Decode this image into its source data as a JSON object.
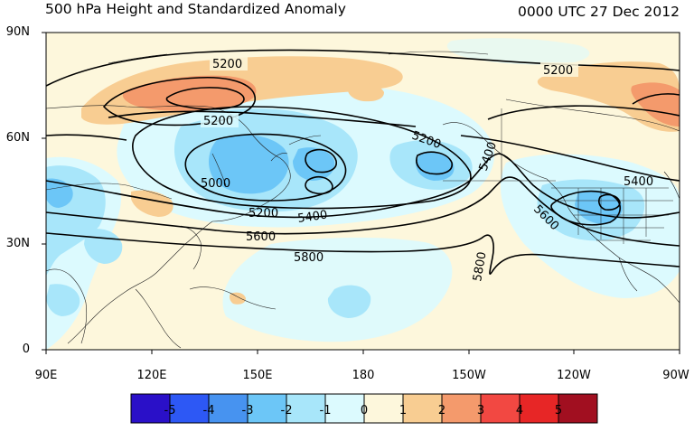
{
  "title": {
    "left": "500 hPa Height and Standardized Anomaly",
    "right": "0000 UTC 27 Dec 2012"
  },
  "map": {
    "lat_labels": [
      "90N",
      "60N",
      "30N",
      "0"
    ],
    "lon_labels": [
      "90E",
      "120E",
      "150E",
      "180",
      "150W",
      "120W",
      "90W"
    ],
    "contour_labels": [
      "5200",
      "5200",
      "5200",
      "5200",
      "5200",
      "5000",
      "5200",
      "5400",
      "5400",
      "5400",
      "5600",
      "5600",
      "5800",
      "5800"
    ]
  },
  "colorbar": {
    "labels": [
      "-5",
      "-4",
      "-3",
      "-2",
      "-1",
      "0",
      "1",
      "2",
      "3",
      "4",
      "5"
    ],
    "colors": [
      "#2a10c8",
      "#2d58f5",
      "#4793f0",
      "#6cc6f7",
      "#a8e6fa",
      "#dcfafe",
      "#fdf7dc",
      "#f8cd92",
      "#f49a6c",
      "#f24842",
      "#e72626",
      "#a10f20"
    ]
  }
}
